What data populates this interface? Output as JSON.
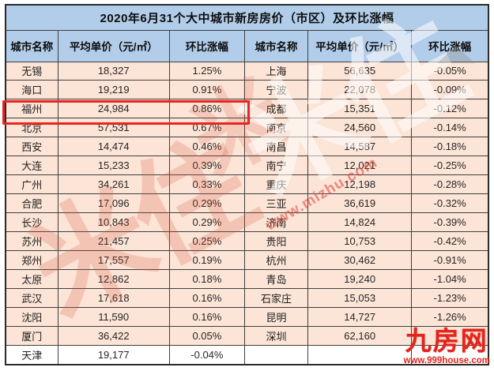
{
  "title": "2020年6月31个大中城市新房房价（市区）及环比涨幅",
  "table": {
    "headers": [
      "城市名称",
      "平均单价（元/㎡）",
      "环比涨幅",
      "城市名称",
      "平均单价（元/㎡）",
      "环比涨幅"
    ],
    "rows": [
      {
        "l": [
          "无锡",
          "18,327",
          "1.25%"
        ],
        "r": [
          "上海",
          "56,635",
          "-0.05%"
        ]
      },
      {
        "l": [
          "海口",
          "19,219",
          "0.91%"
        ],
        "r": [
          "宁波",
          "22,078",
          "-0.09%"
        ]
      },
      {
        "l": [
          "福州",
          "24,984",
          "0.86%"
        ],
        "r": [
          "成都",
          "15,351",
          "-0.12%"
        ]
      },
      {
        "l": [
          "北京",
          "57,531",
          "0.67%"
        ],
        "r": [
          "南京",
          "24,560",
          "-0.14%"
        ]
      },
      {
        "l": [
          "西安",
          "14,474",
          "0.46%"
        ],
        "r": [
          "南昌",
          "14,587",
          "-0.18%"
        ]
      },
      {
        "l": [
          "大连",
          "15,233",
          "0.39%"
        ],
        "r": [
          "南宁",
          "12,021",
          "-0.25%"
        ]
      },
      {
        "l": [
          "广州",
          "34,261",
          "0.33%"
        ],
        "r": [
          "重庆",
          "12,198",
          "-0.28%"
        ]
      },
      {
        "l": [
          "合肥",
          "17,096",
          "0.29%"
        ],
        "r": [
          "三亚",
          "36,619",
          "-0.32%"
        ]
      },
      {
        "l": [
          "长沙",
          "10,843",
          "0.29%"
        ],
        "r": [
          "济南",
          "14,824",
          "-0.39%"
        ]
      },
      {
        "l": [
          "苏州",
          "21,457",
          "0.25%"
        ],
        "r": [
          "贵阳",
          "10,753",
          "-0.42%"
        ]
      },
      {
        "l": [
          "郑州",
          "17,557",
          "0.19%"
        ],
        "r": [
          "杭州",
          "30,462",
          "-0.91%"
        ]
      },
      {
        "l": [
          "太原",
          "12,862",
          "0.18%"
        ],
        "r": [
          "青岛",
          "19,240",
          "-1.04%"
        ]
      },
      {
        "l": [
          "武汉",
          "17,618",
          "0.16%"
        ],
        "r": [
          "石家庄",
          "15,053",
          "-1.23%"
        ]
      },
      {
        "l": [
          "沈阳",
          "11,590",
          "0.16%"
        ],
        "r": [
          "昆明",
          "14,727",
          "-1.26%"
        ]
      },
      {
        "l": [
          "厦门",
          "36,422",
          "0.05%"
        ],
        "r": [
          "深圳",
          "62,160",
          ""
        ]
      },
      {
        "l": [
          "天津",
          "19,177",
          "-0.04%"
        ],
        "r": [
          "",
          "",
          ""
        ]
      }
    ],
    "highlight": {
      "city": "福州",
      "row_index": 2,
      "side": "left"
    }
  },
  "watermarks": {
    "site_text": "www.mizhu.com",
    "brand_glyphs": "米住",
    "brand_glyph_small": "米",
    "logo_text": "九房网",
    "logo_url": "www.999house.com"
  },
  "colors": {
    "header_bg": "#b2cde9",
    "row_bg": "#fce4d6",
    "row_alt_bg": "#ffffff",
    "border": "#3f3f3f",
    "highlight_border": "#e8251f",
    "logo_red": "#e2251d"
  }
}
